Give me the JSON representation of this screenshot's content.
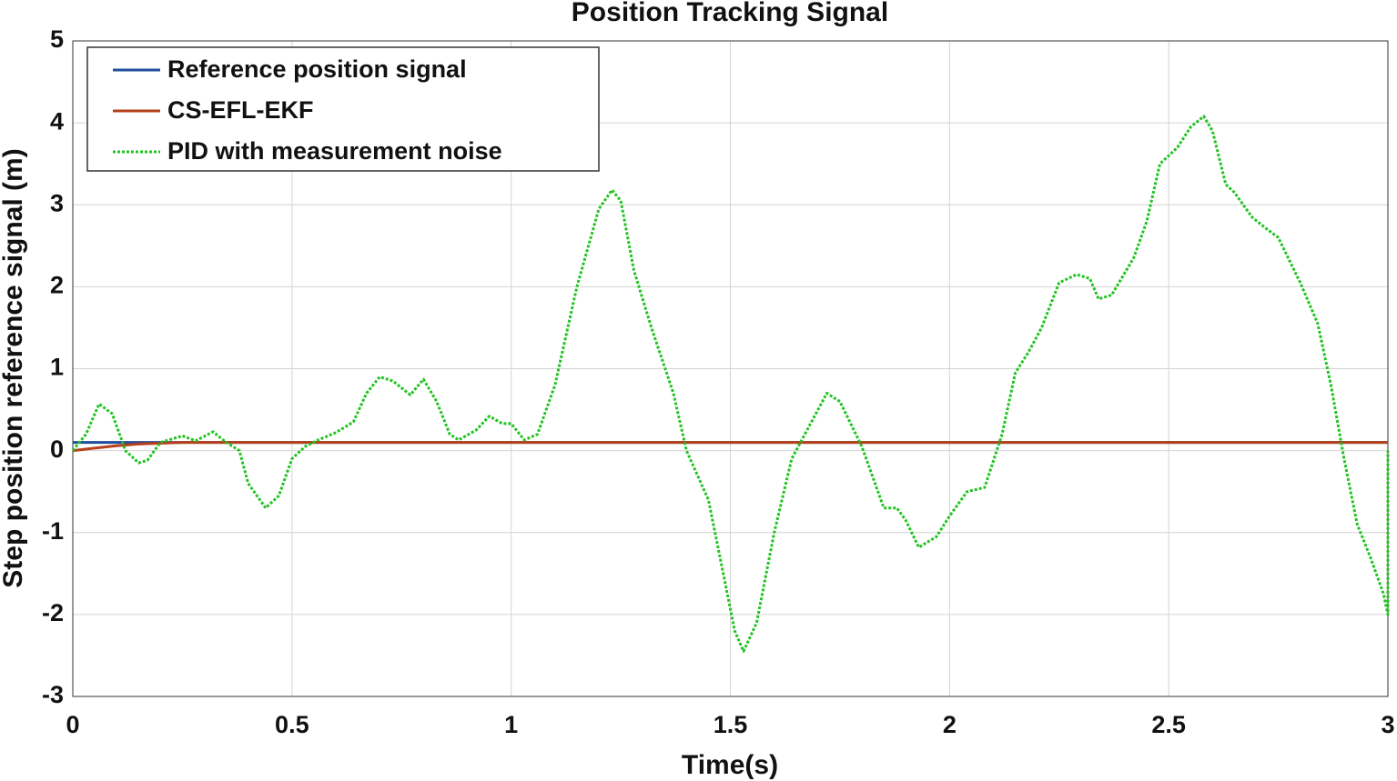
{
  "chart_data": {
    "type": "line",
    "title": "Position Tracking Signal",
    "x_label": "Time(s)",
    "y_label": "Step position reference signal (m)",
    "xlim": [
      0,
      3
    ],
    "ylim": [
      -3,
      5
    ],
    "xticks": [
      0,
      0.5,
      1,
      1.5,
      2,
      2.5,
      3
    ],
    "yticks": [
      -3,
      -2,
      -1,
      0,
      1,
      2,
      3,
      4,
      5
    ],
    "grid": true,
    "legend": "upper left",
    "series": [
      {
        "name": "Reference position signal",
        "color": "#1f4e9c",
        "style": "solid",
        "x": [
          0,
          3
        ],
        "values": [
          0.1,
          0.1
        ]
      },
      {
        "name": "CS-EFL-EKF",
        "color": "#b5401a",
        "style": "solid",
        "x": [
          0,
          0.05,
          0.1,
          0.15,
          0.2,
          0.25,
          3
        ],
        "values": [
          0,
          0.03,
          0.06,
          0.08,
          0.09,
          0.1,
          0.1
        ]
      },
      {
        "name": "PID with measurement noise",
        "color": "#22c322",
        "style": "dotted",
        "x": [
          0,
          0.03,
          0.06,
          0.09,
          0.12,
          0.15,
          0.17,
          0.2,
          0.25,
          0.28,
          0.32,
          0.35,
          0.38,
          0.4,
          0.44,
          0.47,
          0.5,
          0.53,
          0.56,
          0.6,
          0.64,
          0.67,
          0.7,
          0.73,
          0.77,
          0.8,
          0.83,
          0.86,
          0.88,
          0.92,
          0.95,
          0.98,
          1.0,
          1.03,
          1.06,
          1.1,
          1.15,
          1.2,
          1.23,
          1.25,
          1.28,
          1.32,
          1.37,
          1.4,
          1.45,
          1.48,
          1.51,
          1.53,
          1.56,
          1.6,
          1.64,
          1.68,
          1.72,
          1.75,
          1.8,
          1.85,
          1.88,
          1.9,
          1.93,
          1.97,
          2.0,
          2.04,
          2.08,
          2.12,
          2.15,
          2.18,
          2.21,
          2.25,
          2.29,
          2.32,
          2.34,
          2.37,
          2.42,
          2.45,
          2.48,
          2.52,
          2.55,
          2.58,
          2.6,
          2.63,
          2.65,
          2.69,
          2.72,
          2.75,
          2.8,
          2.84,
          2.87,
          2.9,
          2.93,
          2.96,
          2.99,
          3.0,
          3.0
        ],
        "values": [
          0,
          0.2,
          0.57,
          0.45,
          0.0,
          -0.15,
          -0.12,
          0.1,
          0.18,
          0.12,
          0.23,
          0.1,
          0.0,
          -0.4,
          -0.7,
          -0.55,
          -0.1,
          0.05,
          0.13,
          0.22,
          0.35,
          0.7,
          0.9,
          0.85,
          0.68,
          0.87,
          0.6,
          0.2,
          0.13,
          0.25,
          0.42,
          0.33,
          0.33,
          0.13,
          0.2,
          0.8,
          2.0,
          2.95,
          3.18,
          3.05,
          2.2,
          1.5,
          0.7,
          0.0,
          -0.6,
          -1.4,
          -2.2,
          -2.45,
          -2.1,
          -1.0,
          -0.1,
          0.3,
          0.7,
          0.6,
          0.05,
          -0.7,
          -0.7,
          -0.85,
          -1.18,
          -1.05,
          -0.8,
          -0.5,
          -0.45,
          0.2,
          0.95,
          1.2,
          1.5,
          2.05,
          2.15,
          2.1,
          1.85,
          1.9,
          2.35,
          2.8,
          3.5,
          3.7,
          3.95,
          4.08,
          3.9,
          3.25,
          3.15,
          2.85,
          2.72,
          2.6,
          2.05,
          1.55,
          0.8,
          -0.1,
          -0.9,
          -1.3,
          -1.75,
          -2.0,
          0
        ]
      }
    ]
  }
}
